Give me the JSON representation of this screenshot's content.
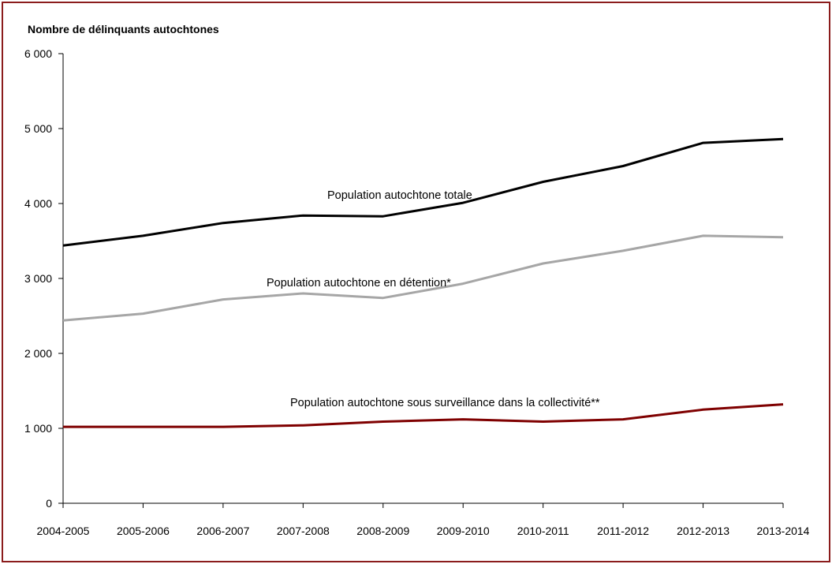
{
  "chart_data": {
    "type": "line",
    "ylabel": "Nombre de délinquants autochtones",
    "ylim": [
      0,
      6000
    ],
    "yticks": [
      0,
      1000,
      2000,
      3000,
      4000,
      5000,
      6000
    ],
    "ytick_labels": [
      "0",
      "1 000",
      "2 000",
      "3 000",
      "4 000",
      "5 000",
      "6 000"
    ],
    "grid": false,
    "categories": [
      "2004-2005",
      "2005-2006",
      "2006-2007",
      "2007-2008",
      "2008-2009",
      "2009-2010",
      "2010-2011",
      "2011-2012",
      "2012-2013",
      "2013-2014"
    ],
    "series": [
      {
        "name": "Population autochtone totale",
        "color": "#000000",
        "values": [
          3440,
          3570,
          3740,
          3840,
          3830,
          4010,
          4290,
          4500,
          4810,
          4860
        ]
      },
      {
        "name": "Population autochtone en détention*",
        "color": "#a6a6a6",
        "values": [
          2440,
          2530,
          2720,
          2800,
          2740,
          2930,
          3200,
          3370,
          3570,
          3550
        ]
      },
      {
        "name": "Population autochtone sous surveillance dans la collectivité**",
        "color": "#7f0000",
        "values": [
          1020,
          1020,
          1020,
          1040,
          1090,
          1120,
          1090,
          1120,
          1250,
          1320
        ]
      }
    ]
  },
  "frame": {
    "border_color": "#8b1c1c"
  }
}
